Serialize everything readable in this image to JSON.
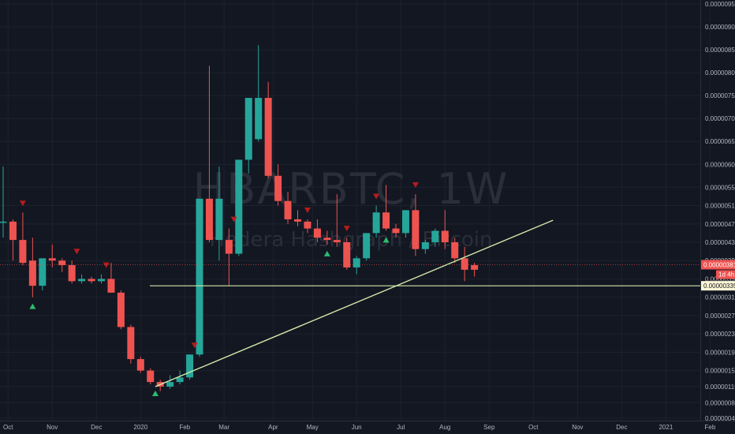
{
  "chart_data": {
    "type": "candlestick",
    "watermark": {
      "symbol": "HBARBTC, 1W",
      "description": "Hedera Hashgraph / Bitcoin"
    },
    "y_axis": {
      "min": 4.6e-07,
      "max": 9.5e-06,
      "ticks": [
        "0.00000950",
        "0.00000900",
        "0.00000850",
        "0.00000800",
        "0.00000750",
        "0.00000700",
        "0.00000650",
        "0.00000600",
        "0.00000550",
        "0.00000510",
        "0.00000470",
        "0.00000430",
        "0.00000390",
        "0.00000350",
        "0.00000310",
        "0.00000270",
        "0.00000230",
        "0.00000190",
        "0.00000150",
        "0.00000115",
        "0.00000080",
        "0.00000046"
      ]
    },
    "x_axis": {
      "ticks": [
        {
          "label": "Oct",
          "week": 0.5
        },
        {
          "label": "Nov",
          "week": 5
        },
        {
          "label": "Dec",
          "week": 9.5
        },
        {
          "label": "2020",
          "week": 14
        },
        {
          "label": "Feb",
          "week": 18.5
        },
        {
          "label": "Mar",
          "week": 22.5
        },
        {
          "label": "Apr",
          "week": 27.5
        },
        {
          "label": "May",
          "week": 31.5
        },
        {
          "label": "Jun",
          "week": 36
        },
        {
          "label": "Jul",
          "week": 40.5
        },
        {
          "label": "Aug",
          "week": 45
        },
        {
          "label": "Sep",
          "week": 49.5
        },
        {
          "label": "Oct",
          "week": 54
        },
        {
          "label": "Nov",
          "week": 58.5
        },
        {
          "label": "Dec",
          "week": 63
        },
        {
          "label": "2021",
          "week": 67.5
        },
        {
          "label": "Feb",
          "week": 72
        }
      ]
    },
    "candles": [
      {
        "o": 4.75e-06,
        "h": 5.95e-06,
        "l": 4.4e-06,
        "c": 4.75e-06
      },
      {
        "o": 4.75e-06,
        "h": 4.8e-06,
        "l": 3.9e-06,
        "c": 4.35e-06
      },
      {
        "o": 4.35e-06,
        "h": 4.95e-06,
        "l": 3.8e-06,
        "c": 3.85e-06
      },
      {
        "o": 3.9e-06,
        "h": 4.4e-06,
        "l": 3.1e-06,
        "c": 3.35e-06
      },
      {
        "o": 3.35e-06,
        "h": 3.9e-06,
        "l": 3.25e-06,
        "c": 3.95e-06
      },
      {
        "o": 3.95e-06,
        "h": 4.25e-06,
        "l": 3.75e-06,
        "c": 3.9e-06
      },
      {
        "o": 3.9e-06,
        "h": 3.95e-06,
        "l": 3.65e-06,
        "c": 3.8e-06
      },
      {
        "o": 3.8e-06,
        "h": 3.9e-06,
        "l": 3.4e-06,
        "c": 3.45e-06
      },
      {
        "o": 3.45e-06,
        "h": 3.6e-06,
        "l": 3.4e-06,
        "c": 3.5e-06
      },
      {
        "o": 3.5e-06,
        "h": 3.55e-06,
        "l": 3.4e-06,
        "c": 3.45e-06
      },
      {
        "o": 3.45e-06,
        "h": 3.6e-06,
        "l": 3.4e-06,
        "c": 3.5e-06
      },
      {
        "o": 3.5e-06,
        "h": 3.85e-06,
        "l": 3.2e-06,
        "c": 3.2e-06
      },
      {
        "o": 3.2e-06,
        "h": 3.25e-06,
        "l": 2.4e-06,
        "c": 2.45e-06
      },
      {
        "o": 2.45e-06,
        "h": 2.5e-06,
        "l": 1.65e-06,
        "c": 1.75e-06
      },
      {
        "o": 1.75e-06,
        "h": 1.8e-06,
        "l": 1.45e-06,
        "c": 1.5e-06
      },
      {
        "o": 1.5e-06,
        "h": 1.55e-06,
        "l": 1.2e-06,
        "c": 1.25e-06
      },
      {
        "o": 1.25e-06,
        "h": 1.3e-06,
        "l": 1.05e-06,
        "c": 1.15e-06
      },
      {
        "o": 1.15e-06,
        "h": 1.4e-06,
        "l": 1.1e-06,
        "c": 1.25e-06
      },
      {
        "o": 1.25e-06,
        "h": 1.5e-06,
        "l": 1.2e-06,
        "c": 1.35e-06
      },
      {
        "o": 1.35e-06,
        "h": 1.85e-06,
        "l": 1.3e-06,
        "c": 1.85e-06
      },
      {
        "o": 1.85e-06,
        "h": 5.25e-06,
        "l": 1.8e-06,
        "c": 5.25e-06
      },
      {
        "o": 5.25e-06,
        "h": 8.15e-06,
        "l": 4.3e-06,
        "c": 4.35e-06
      },
      {
        "o": 4.35e-06,
        "h": 5.95e-06,
        "l": 3.9e-06,
        "c": 5.25e-06
      },
      {
        "o": 4.35e-06,
        "h": 4.6e-06,
        "l": 3.35e-06,
        "c": 4.05e-06
      },
      {
        "o": 4.05e-06,
        "h": 6.1e-06,
        "l": 4e-06,
        "c": 6.1e-06
      },
      {
        "o": 6.1e-06,
        "h": 7.45e-06,
        "l": 5.8e-06,
        "c": 7.45e-06
      },
      {
        "o": 6.55e-06,
        "h": 8.6e-06,
        "l": 6.5e-06,
        "c": 7.45e-06
      },
      {
        "o": 7.45e-06,
        "h": 7.8e-06,
        "l": 5.7e-06,
        "c": 5.75e-06
      },
      {
        "o": 5.75e-06,
        "h": 6e-06,
        "l": 5.1e-06,
        "c": 5.2e-06
      },
      {
        "o": 5.2e-06,
        "h": 5.4e-06,
        "l": 4.7e-06,
        "c": 4.8e-06
      },
      {
        "o": 4.8e-06,
        "h": 5e-06,
        "l": 4.65e-06,
        "c": 4.75e-06
      },
      {
        "o": 4.75e-06,
        "h": 4.8e-06,
        "l": 4.5e-06,
        "c": 4.6e-06
      },
      {
        "o": 4.6e-06,
        "h": 4.8e-06,
        "l": 4.3e-06,
        "c": 4.4e-06
      },
      {
        "o": 4.4e-06,
        "h": 4.55e-06,
        "l": 4.25e-06,
        "c": 4.35e-06
      },
      {
        "o": 4.35e-06,
        "h": 5.35e-06,
        "l": 4.2e-06,
        "c": 4.3e-06
      },
      {
        "o": 4.3e-06,
        "h": 4.4e-06,
        "l": 3.7e-06,
        "c": 3.75e-06
      },
      {
        "o": 3.75e-06,
        "h": 4e-06,
        "l": 3.6e-06,
        "c": 3.95e-06
      },
      {
        "o": 3.95e-06,
        "h": 4.5e-06,
        "l": 3.9e-06,
        "c": 4.5e-06
      },
      {
        "o": 4.5e-06,
        "h": 5.1e-06,
        "l": 4.4e-06,
        "c": 4.95e-06
      },
      {
        "o": 4.95e-06,
        "h": 5.55e-06,
        "l": 4.55e-06,
        "c": 4.6e-06
      },
      {
        "o": 4.6e-06,
        "h": 4.7e-06,
        "l": 4.4e-06,
        "c": 4.5e-06
      },
      {
        "o": 4.5e-06,
        "h": 5e-06,
        "l": 4.4e-06,
        "c": 5e-06
      },
      {
        "o": 5e-06,
        "h": 5.35e-06,
        "l": 4e-06,
        "c": 4.15e-06
      },
      {
        "o": 4.15e-06,
        "h": 4.35e-06,
        "l": 4.05e-06,
        "c": 4.3e-06
      },
      {
        "o": 4.3e-06,
        "h": 4.6e-06,
        "l": 4.2e-06,
        "c": 4.55e-06
      },
      {
        "o": 4.55e-06,
        "h": 5e-06,
        "l": 4.15e-06,
        "c": 4.3e-06
      },
      {
        "o": 4.3e-06,
        "h": 4.4e-06,
        "l": 3.85e-06,
        "c": 3.95e-06
      },
      {
        "o": 3.95e-06,
        "h": 4.2e-06,
        "l": 3.45e-06,
        "c": 3.7e-06
      },
      {
        "o": 3.8e-06,
        "h": 3.85e-06,
        "l": 3.55e-06,
        "c": 3.7e-06
      }
    ],
    "markers": [
      {
        "week": 2,
        "type": "down"
      },
      {
        "week": 3,
        "type": "up"
      },
      {
        "week": 7.5,
        "type": "down"
      },
      {
        "week": 10.5,
        "type": "down"
      },
      {
        "week": 15.5,
        "type": "up"
      },
      {
        "week": 19.5,
        "type": "down"
      },
      {
        "week": 23.5,
        "type": "down"
      },
      {
        "week": 31,
        "type": "down"
      },
      {
        "week": 33,
        "type": "up"
      },
      {
        "week": 35,
        "type": "down"
      },
      {
        "week": 38,
        "type": "down"
      },
      {
        "week": 39,
        "type": "up"
      },
      {
        "week": 42,
        "type": "down"
      }
    ],
    "trendline": {
      "from": {
        "week": 15.5,
        "price": 1.15e-06
      },
      "to": {
        "week": 56,
        "price": 4.78e-06
      }
    },
    "horizontal_line": {
      "price": 3.35e-06,
      "label": "0.00000335"
    },
    "price_tag": {
      "price": 3.81e-06,
      "label": "0.00000381",
      "countdown": "1d 4h"
    },
    "colors": {
      "up": "#26a69a",
      "down": "#ef5350",
      "background": "#131722",
      "line": "#cfe8a9",
      "grid": "#1e222d"
    }
  }
}
